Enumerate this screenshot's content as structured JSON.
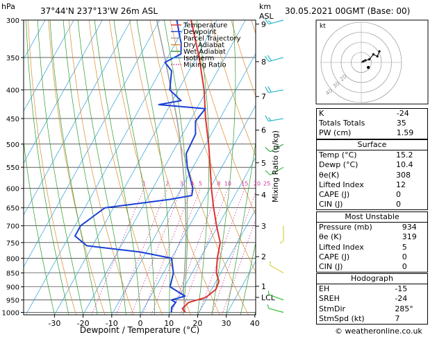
{
  "header": {
    "hpa_label": "hPa",
    "location": "37°44'N  237°13'W  26m  ASL",
    "km_label": "km",
    "asl_label": "ASL",
    "datetime": "30.05.2021  00GMT  (Base: 00)"
  },
  "colors": {
    "temperature": "#e03030",
    "dewpoint": "#1a3fd8",
    "parcel": "#a0a0a0",
    "dry_adiabat": "#d98a2a",
    "wet_adiabat": "#2a9a2a",
    "isotherm": "#2aa0d8",
    "mixing_ratio": "#d030a0"
  },
  "legend": [
    {
      "label": "Temperature",
      "color": "#e03030",
      "style": "solid"
    },
    {
      "label": "Dewpoint",
      "color": "#1a3fd8",
      "style": "solid"
    },
    {
      "label": "Parcel Trajectory",
      "color": "#a0a0a0",
      "style": "solid"
    },
    {
      "label": "Dry Adiabat",
      "color": "#d98a2a",
      "style": "solid"
    },
    {
      "label": "Wet Adiabat",
      "color": "#2a9a2a",
      "style": "solid"
    },
    {
      "label": "Isotherm",
      "color": "#2aa0d8",
      "style": "solid"
    },
    {
      "label": "Mixing Ratio",
      "color": "#d030a0",
      "style": "dotted"
    }
  ],
  "chart_data": {
    "type": "skew-t",
    "xlabel": "Dewpoint / Temperature (°C)",
    "ylabel": "hPa",
    "right_axis_label": "Mixing Ratio (g/kg)",
    "pressure_ticks": [
      300,
      350,
      400,
      450,
      500,
      550,
      600,
      650,
      700,
      750,
      800,
      850,
      900,
      950,
      1000
    ],
    "temp_ticks": [
      -30,
      -20,
      -10,
      0,
      10,
      20,
      30,
      40
    ],
    "xlim": [
      -40,
      40
    ],
    "ylim_hpa": [
      1010,
      300
    ],
    "km_ticks": [
      {
        "label": "9",
        "p": 305
      },
      {
        "label": "8",
        "p": 356
      },
      {
        "label": "7",
        "p": 411
      },
      {
        "label": "6",
        "p": 472
      },
      {
        "label": "5",
        "p": 540
      },
      {
        "label": "4",
        "p": 616
      },
      {
        "label": "3",
        "p": 701
      },
      {
        "label": "2",
        "p": 795
      },
      {
        "label": "1",
        "p": 898
      },
      {
        "label": "LCL",
        "p": 940
      }
    ],
    "mixing_ratio_labels": [
      "1",
      "2",
      "3",
      "4",
      "5",
      "8",
      "10",
      "15",
      "20",
      "25"
    ],
    "mixing_ratio_values": [
      1,
      2,
      3,
      4,
      5,
      8,
      10,
      15,
      20,
      25
    ],
    "temperature": [
      {
        "p": 1000,
        "t": 15.2
      },
      {
        "p": 985,
        "t": 13.5
      },
      {
        "p": 960,
        "t": 14.5
      },
      {
        "p": 940,
        "t": 19.5
      },
      {
        "p": 910,
        "t": 21.5
      },
      {
        "p": 880,
        "t": 21.0
      },
      {
        "p": 850,
        "t": 18.5
      },
      {
        "p": 800,
        "t": 16.0
      },
      {
        "p": 750,
        "t": 14.0
      },
      {
        "p": 700,
        "t": 9.5
      },
      {
        "p": 650,
        "t": 5.0
      },
      {
        "p": 600,
        "t": 0.5
      },
      {
        "p": 550,
        "t": -4.0
      },
      {
        "p": 500,
        "t": -9.0
      },
      {
        "p": 450,
        "t": -15.0
      },
      {
        "p": 400,
        "t": -21.0
      },
      {
        "p": 350,
        "t": -29.0
      },
      {
        "p": 300,
        "t": -39.0
      }
    ],
    "dewpoint": [
      {
        "p": 1000,
        "t": 10.4
      },
      {
        "p": 980,
        "t": 9.5
      },
      {
        "p": 960,
        "t": 10.0
      },
      {
        "p": 950,
        "t": 8.0
      },
      {
        "p": 935,
        "t": 12.0
      },
      {
        "p": 915,
        "t": 8.0
      },
      {
        "p": 900,
        "t": 5.0
      },
      {
        "p": 850,
        "t": 3.5
      },
      {
        "p": 800,
        "t": 0.0
      },
      {
        "p": 780,
        "t": -12.0
      },
      {
        "p": 760,
        "t": -32.0
      },
      {
        "p": 730,
        "t": -38.0
      },
      {
        "p": 700,
        "t": -38.0
      },
      {
        "p": 650,
        "t": -33.0
      },
      {
        "p": 628,
        "t": -12.0
      },
      {
        "p": 618,
        "t": -5.0
      },
      {
        "p": 600,
        "t": -6.0
      },
      {
        "p": 550,
        "t": -12.0
      },
      {
        "p": 520,
        "t": -15.0
      },
      {
        "p": 480,
        "t": -15.5
      },
      {
        "p": 455,
        "t": -18.0
      },
      {
        "p": 432,
        "t": -17.0
      },
      {
        "p": 425,
        "t": -34.0
      },
      {
        "p": 418,
        "t": -27.0
      },
      {
        "p": 400,
        "t": -33.0
      },
      {
        "p": 370,
        "t": -36.0
      },
      {
        "p": 357,
        "t": -40.0
      },
      {
        "p": 345,
        "t": -36.0
      },
      {
        "p": 330,
        "t": -38.0
      },
      {
        "p": 320,
        "t": -40.0
      },
      {
        "p": 300,
        "t": -44.0
      }
    ],
    "parcel": [
      {
        "p": 1000,
        "t": 15.2
      },
      {
        "p": 940,
        "t": 11.8
      },
      {
        "p": 900,
        "t": 9.6
      },
      {
        "p": 850,
        "t": 7.4
      },
      {
        "p": 800,
        "t": 4.8
      },
      {
        "p": 750,
        "t": 2.0
      },
      {
        "p": 700,
        "t": -1.2
      },
      {
        "p": 650,
        "t": -4.8
      },
      {
        "p": 600,
        "t": -8.8
      },
      {
        "p": 550,
        "t": -13.5
      },
      {
        "p": 500,
        "t": -18.8
      },
      {
        "p": 450,
        "t": -25.0
      },
      {
        "p": 400,
        "t": -32.5
      },
      {
        "p": 350,
        "t": -41.0
      },
      {
        "p": 300,
        "t": -51.0
      }
    ],
    "wind_barbs": [
      {
        "p": 300,
        "dir": 255,
        "kt": 15
      },
      {
        "p": 350,
        "dir": 255,
        "kt": 20
      },
      {
        "p": 400,
        "dir": 260,
        "kt": 20
      },
      {
        "p": 450,
        "dir": 260,
        "kt": 15
      },
      {
        "p": 500,
        "dir": 240,
        "kt": 10
      },
      {
        "p": 550,
        "dir": 240,
        "kt": 10
      },
      {
        "p": 700,
        "dir": 180,
        "kt": 5
      },
      {
        "p": 850,
        "dir": 300,
        "kt": 5
      },
      {
        "p": 950,
        "dir": 290,
        "kt": 5
      },
      {
        "p": 1000,
        "dir": 285,
        "kt": 5
      }
    ]
  },
  "hodograph": {
    "label": "kt",
    "ring_labels": [
      "40",
      "30",
      "20"
    ],
    "points": [
      {
        "u": 0,
        "v": 0
      },
      {
        "u": 2,
        "v": 1
      },
      {
        "u": 4,
        "v": 2
      },
      {
        "u": 8,
        "v": 3
      },
      {
        "u": 12,
        "v": 8
      },
      {
        "u": 16,
        "v": 6
      },
      {
        "u": 18,
        "v": 11
      }
    ],
    "storm_motion": {
      "u": 7,
      "v": -5
    }
  },
  "indices": [
    {
      "key": "K",
      "value": "-24"
    },
    {
      "key": "Totals Totals",
      "value": "35"
    },
    {
      "key": "PW (cm)",
      "value": "1.59"
    }
  ],
  "surface": {
    "title": "Surface",
    "rows": [
      {
        "key": "Temp (°C)",
        "value": "15.2"
      },
      {
        "key": "Dewp (°C)",
        "value": "10.4"
      },
      {
        "key": "θe(K)",
        "value": "308"
      },
      {
        "key": "Lifted Index",
        "value": "12"
      },
      {
        "key": "CAPE (J)",
        "value": "0"
      },
      {
        "key": "CIN (J)",
        "value": "0"
      }
    ]
  },
  "unstable": {
    "title": "Most Unstable",
    "rows": [
      {
        "key": "Pressure (mb)",
        "value": "934"
      },
      {
        "key": "θe (K)",
        "value": "319"
      },
      {
        "key": "Lifted Index",
        "value": "5"
      },
      {
        "key": "CAPE (J)",
        "value": "0"
      },
      {
        "key": "CIN (J)",
        "value": "0"
      }
    ]
  },
  "hodo_table": {
    "title": "Hodograph",
    "rows": [
      {
        "key": "EH",
        "value": "-15"
      },
      {
        "key": "SREH",
        "value": "-24"
      },
      {
        "key": "StmDir",
        "value": "285°"
      },
      {
        "key": "StmSpd (kt)",
        "value": "7"
      }
    ]
  },
  "footer": {
    "copyright": "© weatheronline.co.uk"
  }
}
